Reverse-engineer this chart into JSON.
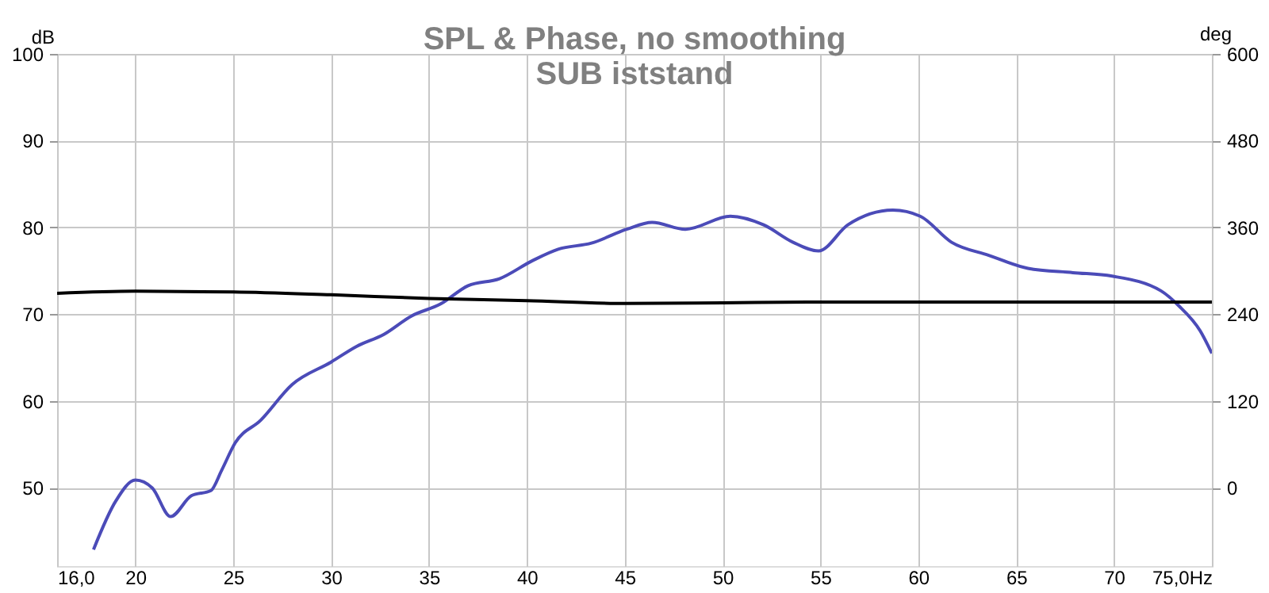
{
  "chart_data": {
    "type": "line",
    "title": "SPL & Phase, no smoothing",
    "subtitle": "SUB iststand",
    "ylabel": "dB",
    "y2label": "deg",
    "xlim": [
      16,
      75
    ],
    "xticks": [
      {
        "value": 16,
        "label": "16,0"
      },
      20,
      25,
      30,
      35,
      40,
      45,
      50,
      55,
      60,
      65,
      70,
      {
        "value": 75,
        "label": "75,0Hz"
      }
    ],
    "ylim": [
      41,
      100
    ],
    "yticks": [
      50,
      60,
      70,
      80,
      90,
      100
    ],
    "y2lim": [
      -108,
      600
    ],
    "y2ticks": [
      0,
      120,
      240,
      360,
      480,
      600
    ],
    "grid": true,
    "marker": "none",
    "line_style": "solid",
    "series": [
      {
        "color": "#4b4bb8",
        "x": [
          17.86,
          19.0,
          20.0,
          20.86,
          21.8,
          22.86,
          23.86,
          24.4,
          25.1,
          26.4,
          28.0,
          30.0,
          31.3,
          32.7,
          34.1,
          35.6,
          37.0,
          38.6,
          40.3,
          41.6,
          43.3,
          45.1,
          46.4,
          48.1,
          50.4,
          52.1,
          53.6,
          54.9,
          56.4,
          58.7,
          60.1,
          61.7,
          63.6,
          65.6,
          67.9,
          69.9,
          72.4,
          73.3,
          74.4,
          75.0
        ],
        "values": [
          42.9,
          48.5,
          50.9,
          50.0,
          46.7,
          49.1,
          49.7,
          52.0,
          55.2,
          57.8,
          61.9,
          64.5,
          66.3,
          67.7,
          69.8,
          71.2,
          73.3,
          74.1,
          76.2,
          77.5,
          78.2,
          79.8,
          80.6,
          79.8,
          81.3,
          80.3,
          78.3,
          77.3,
          80.3,
          82.0,
          81.3,
          78.3,
          76.8,
          75.3,
          74.8,
          74.4,
          72.7,
          71.0,
          68.1,
          65.5
        ]
      },
      {
        "color": "#000000",
        "axis": "y2",
        "x": [
          16,
          20,
          25,
          30,
          35,
          40,
          45,
          50,
          55,
          60,
          65,
          70,
          75
        ],
        "values": [
          269,
          272,
          271,
          267,
          262,
          259,
          255,
          256,
          257,
          257,
          257,
          257,
          257
        ]
      }
    ]
  }
}
